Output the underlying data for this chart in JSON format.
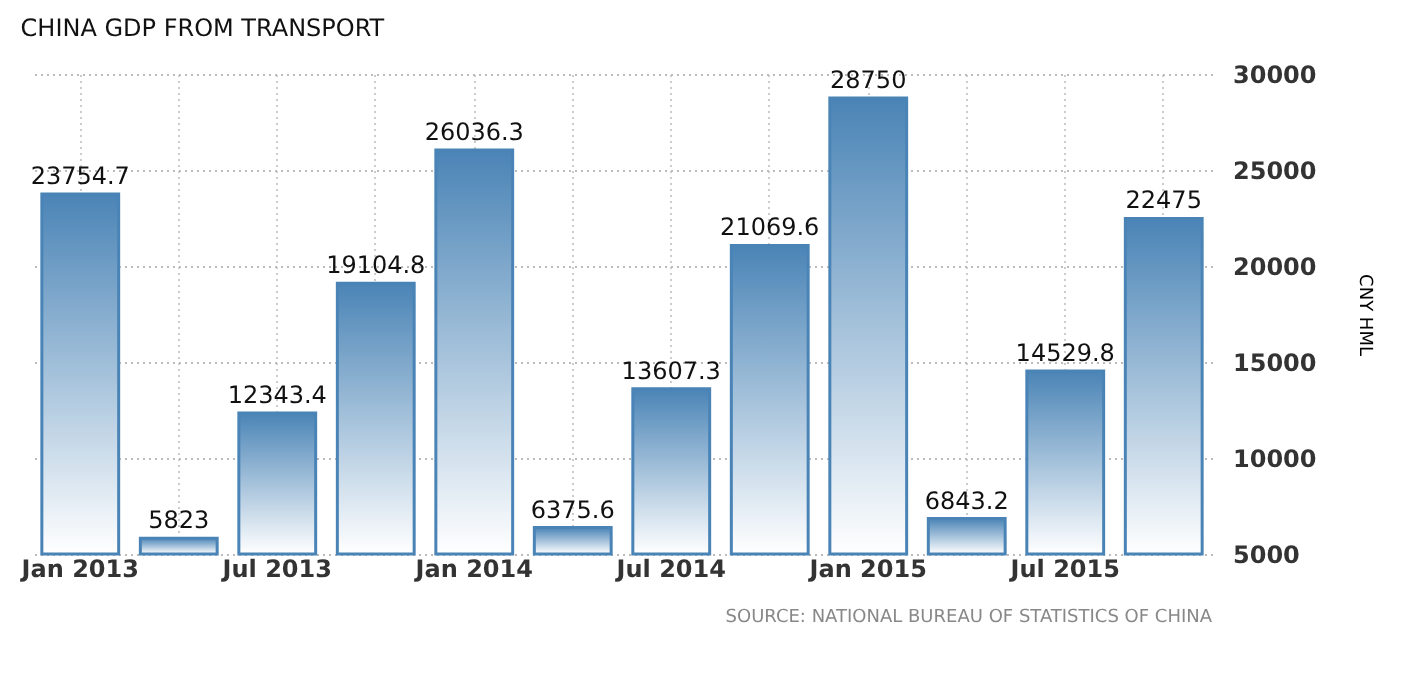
{
  "chart_data": {
    "type": "bar",
    "title": "CHINA GDP FROM TRANSPORT",
    "ylabel": "CNY HML",
    "categories": [
      "Jan 2013",
      null,
      "Jul 2013",
      null,
      "Jan 2014",
      null,
      "Jul 2014",
      null,
      "Jan 2015",
      null,
      "Jul 2015",
      null
    ],
    "values": [
      23754.7,
      5823,
      12343.4,
      19104.8,
      26036.3,
      6375.6,
      13607.3,
      21069.6,
      28750,
      6843.2,
      14529.8,
      22475
    ],
    "color": "#4a84b6",
    "ylim": [
      5000,
      30000
    ],
    "yticks": [
      5000,
      10000,
      15000,
      20000,
      25000,
      30000
    ],
    "grid": true,
    "data_labels": true,
    "annotations": [
      "SOURCE: NATIONAL BUREAU OF STATISTICS OF CHINA"
    ]
  }
}
